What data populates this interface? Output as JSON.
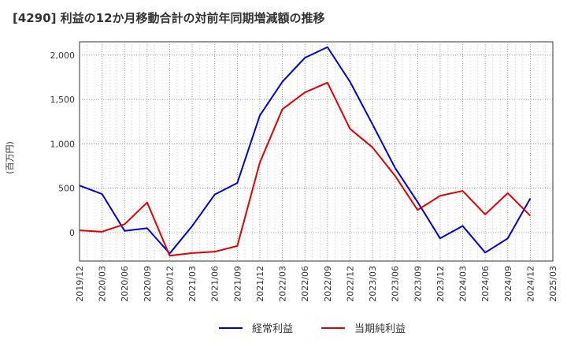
{
  "chart_data": {
    "type": "line",
    "title": "[4290]  利益の12か月移動合計の対前年同期増減額の推移",
    "ylabel": "(百万円)",
    "xlabel": "",
    "ylim": [
      -320,
      2150
    ],
    "yticks": [
      0,
      500,
      1000,
      1500,
      2000
    ],
    "ytick_labels": [
      "0",
      "500",
      "1,000",
      "1,500",
      "2,000"
    ],
    "categories": [
      "2019/12",
      "2020/03",
      "2020/06",
      "2020/09",
      "2020/12",
      "2021/03",
      "2021/06",
      "2021/09",
      "2021/12",
      "2022/03",
      "2022/06",
      "2022/09",
      "2022/12",
      "2023/03",
      "2023/06",
      "2023/09",
      "2023/12",
      "2024/03",
      "2024/06",
      "2024/09",
      "2024/12",
      "2025/03"
    ],
    "series": [
      {
        "name": "経常利益",
        "color": "#0000cc",
        "values": [
          530,
          435,
          20,
          50,
          -235,
          75,
          430,
          560,
          1320,
          1700,
          1970,
          2090,
          1700,
          1220,
          730,
          345,
          -65,
          75,
          -225,
          -65,
          385,
          null
        ]
      },
      {
        "name": "当期純利益",
        "color": "#dd0000",
        "values": [
          25,
          10,
          95,
          340,
          -260,
          -230,
          -215,
          -150,
          790,
          1390,
          1580,
          1690,
          1170,
          960,
          640,
          255,
          415,
          470,
          205,
          445,
          190,
          null
        ]
      }
    ],
    "legend_position": "bottom"
  }
}
